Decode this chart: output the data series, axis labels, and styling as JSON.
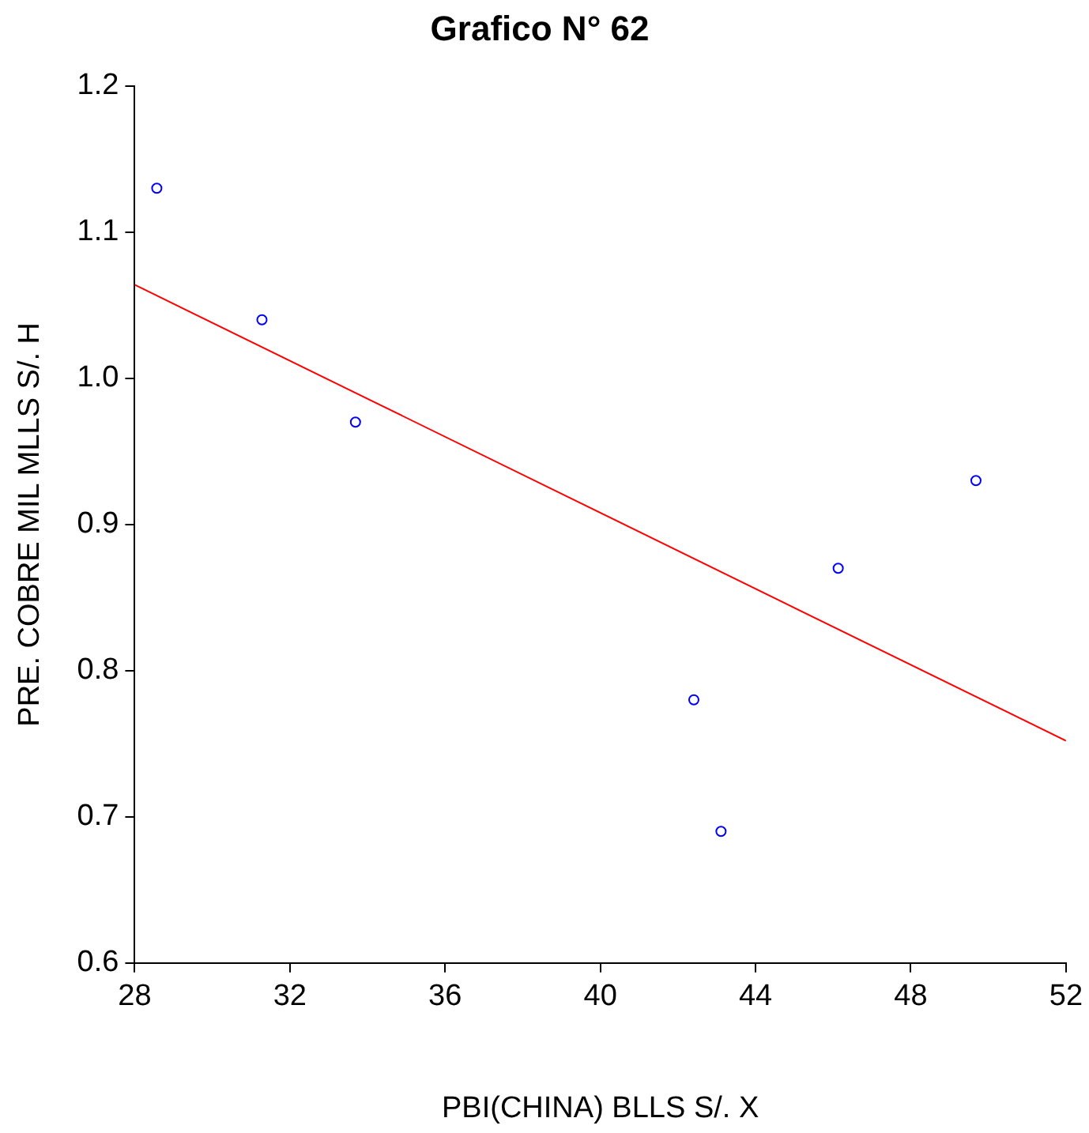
{
  "chart_data": {
    "type": "scatter",
    "title": "Grafico N° 62",
    "xlabel": "PBI(CHINA) BLLS S/. X",
    "ylabel": "PRE. COBRE MIL MLLS S/. H",
    "xlim": [
      28,
      52
    ],
    "xticks": [
      28,
      32,
      36,
      40,
      44,
      48,
      52
    ],
    "ylim": [
      0.6,
      1.2
    ],
    "yticks": [
      {
        "value": 0.6,
        "label": "0.6"
      },
      {
        "value": 0.7,
        "label": "0.7"
      },
      {
        "value": 0.8,
        "label": "0.8"
      },
      {
        "value": 0.9,
        "label": "0.9"
      },
      {
        "value": 1.0,
        "label": "1.0"
      },
      {
        "value": 1.1,
        "label": "1.1"
      },
      {
        "value": 1.2,
        "label": "1.2"
      }
    ],
    "grid": false,
    "legend": false,
    "series": [
      {
        "type": "scatter",
        "color": "#0000ff",
        "marker": "circle",
        "x": [
          28.57,
          31.28,
          33.69,
          42.41,
          43.11,
          46.13,
          49.68
        ],
        "values": [
          1.13,
          1.04,
          0.97,
          0.78,
          0.69,
          0.87,
          0.93
        ]
      },
      {
        "type": "line",
        "color": "#ff0000",
        "marker": "none",
        "line_style": "solid",
        "x": [
          28,
          52
        ],
        "values": [
          1.064,
          0.752
        ]
      }
    ]
  }
}
